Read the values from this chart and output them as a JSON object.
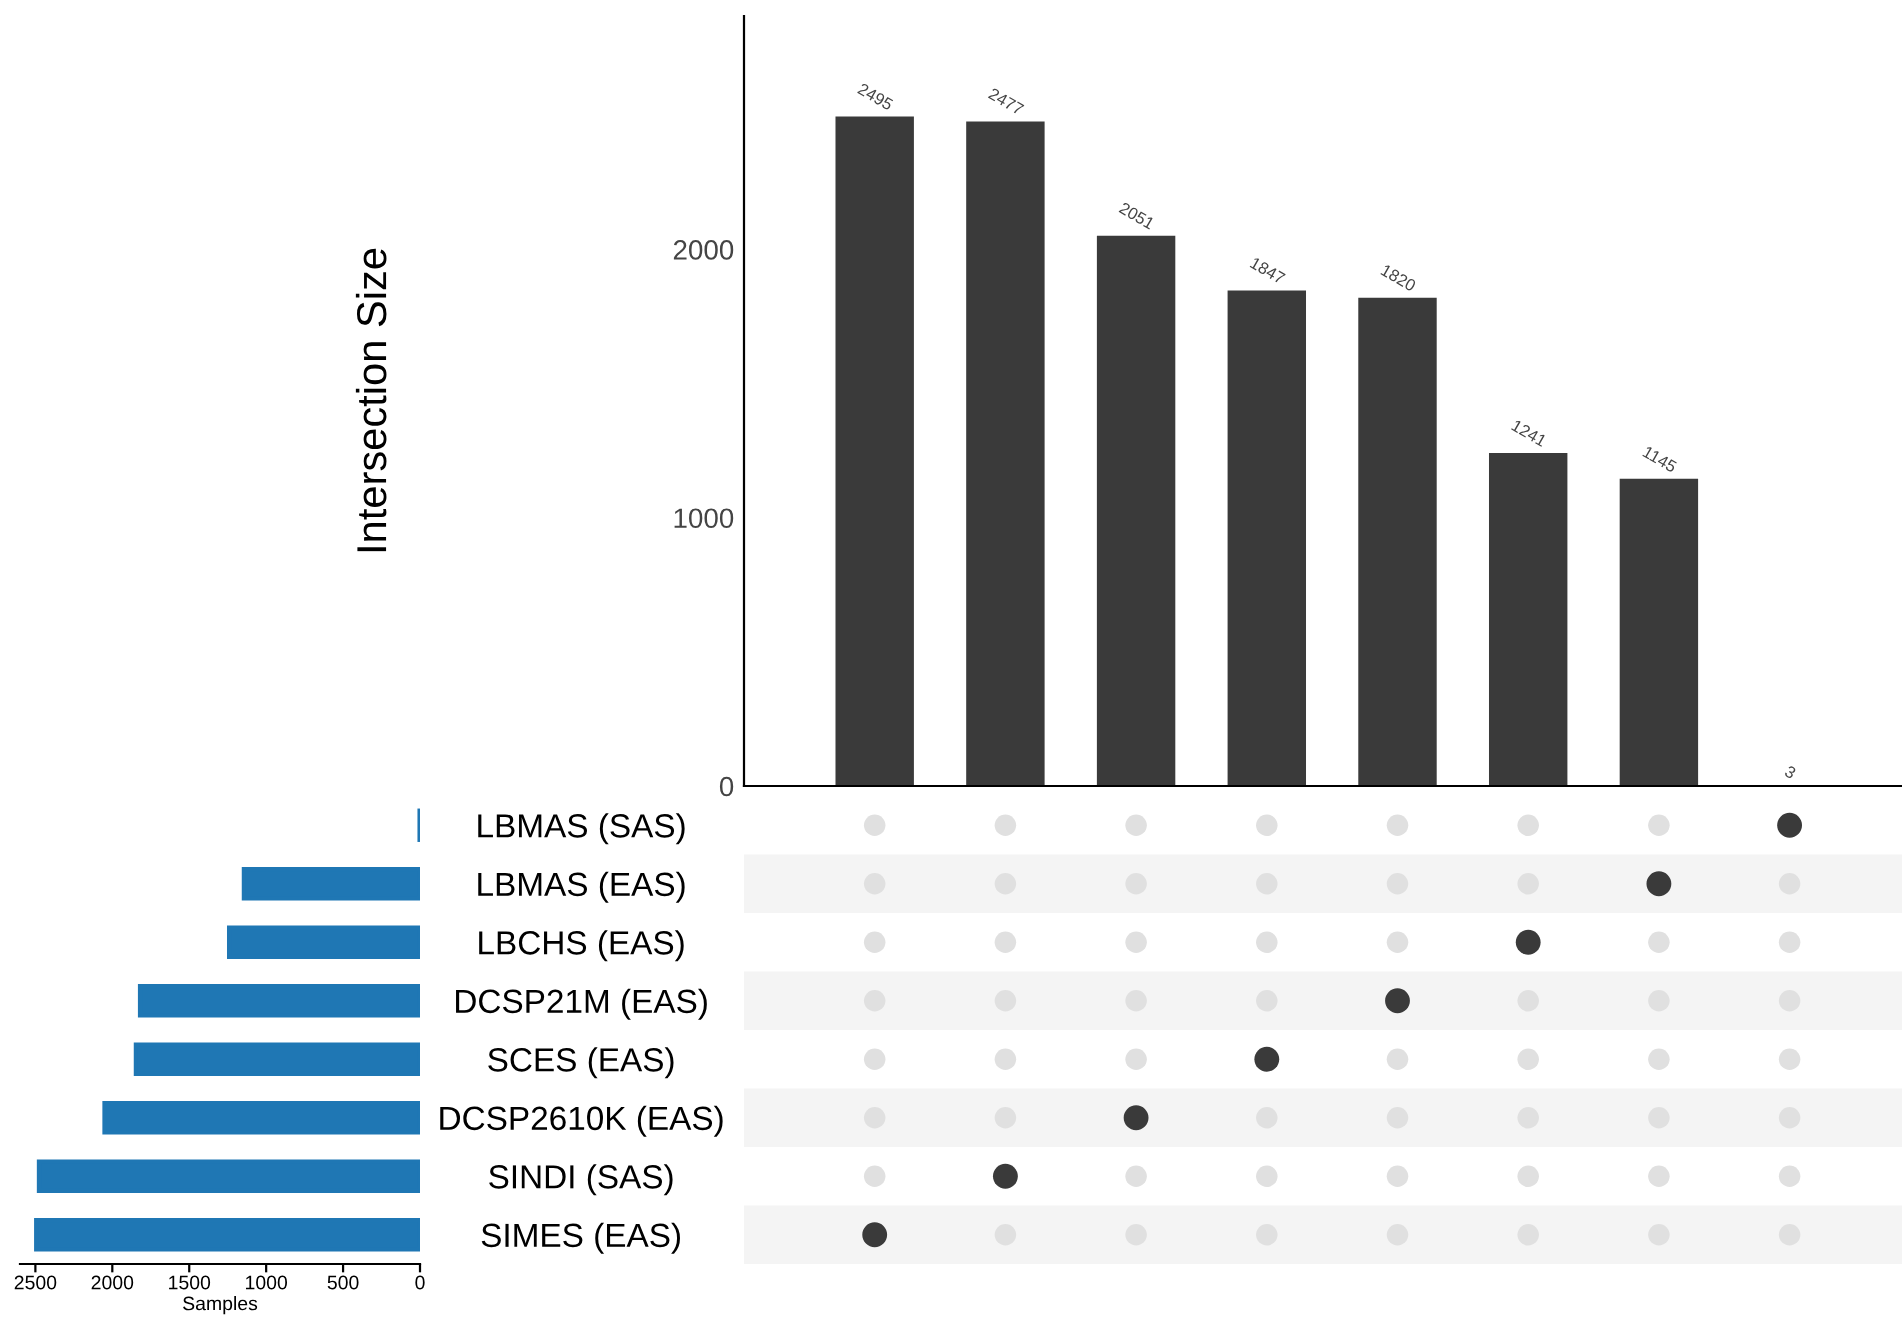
{
  "chart_data": [
    {
      "type": "bar",
      "ylabel": "Intersection Size",
      "categories": [
        null,
        null,
        null,
        null,
        null,
        null,
        null,
        null
      ],
      "values": [
        2495,
        2477,
        2051,
        1847,
        1820,
        1241,
        1145,
        3
      ],
      "color": "#3a3a3a",
      "data_labels": true,
      "ylim": [
        0,
        2870
      ],
      "yticks": [
        0,
        1000,
        2000
      ],
      "tick_labels": "y",
      "grid": false
    },
    {
      "type": "bar",
      "orientation": "horizontal",
      "xlabel": "Samples",
      "categories": [
        "LBMAS (SAS)",
        "LBMAS (EAS)",
        "LBCHS (EAS)",
        "DCSP21M (EAS)",
        "SCES (EAS)",
        "DCSP2610K (EAS)",
        "SINDI (SAS)",
        "SIMES (EAS)"
      ],
      "values": [
        3,
        1145,
        1241,
        1820,
        1847,
        2051,
        2477,
        2495
      ],
      "color": "#1f77b4",
      "xlim": [
        2600,
        0
      ],
      "xticks": [
        2500,
        2000,
        1500,
        1000,
        500,
        0
      ]
    }
  ]
}
